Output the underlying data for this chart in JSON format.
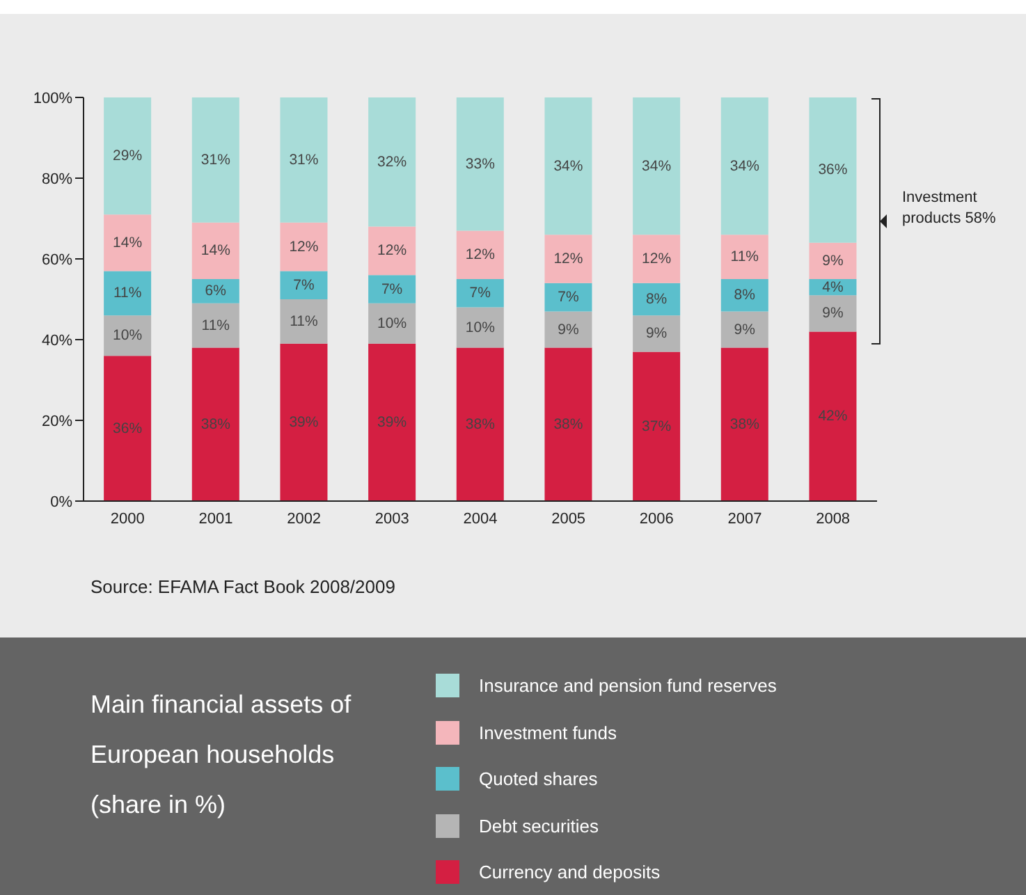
{
  "chart_data": {
    "type": "bar",
    "title": "Main financial assets of European households (share in %)",
    "categories": [
      "2000",
      "2001",
      "2002",
      "2003",
      "2004",
      "2005",
      "2006",
      "2007",
      "2008"
    ],
    "stacked": true,
    "series": [
      {
        "name": "Currency and deposits",
        "color": "#d41f42",
        "values": [
          36,
          38,
          39,
          39,
          38,
          38,
          37,
          38,
          42
        ],
        "value_labels": [
          "36%",
          "38%",
          "39%",
          "39%",
          "38%",
          "38%",
          "37%",
          "38%",
          "42%"
        ]
      },
      {
        "name": "Debt securities",
        "color": "#b5b5b5",
        "values": [
          10,
          11,
          11,
          10,
          10,
          9,
          9,
          9,
          9
        ],
        "value_labels": [
          "10%",
          "11%",
          "11%",
          "10%",
          "10%",
          "9%",
          "9%",
          "9%",
          "9%"
        ]
      },
      {
        "name": "Quoted shares",
        "color": "#5bbfcc",
        "values": [
          11,
          6,
          7,
          7,
          7,
          7,
          8,
          8,
          4
        ],
        "value_labels": [
          "11%",
          "6%",
          "7%",
          "7%",
          "7%",
          "7%",
          "8%",
          "8%",
          "4%"
        ]
      },
      {
        "name": "Investment funds",
        "color": "#f4b6bb",
        "values": [
          14,
          14,
          12,
          12,
          12,
          12,
          12,
          11,
          9
        ],
        "value_labels": [
          "14%",
          "14%",
          "12%",
          "12%",
          "12%",
          "12%",
          "12%",
          "11%",
          "9%"
        ]
      },
      {
        "name": "Insurance and pension fund reserves",
        "color": "#a8dcd8",
        "values": [
          29,
          31,
          31,
          32,
          33,
          34,
          34,
          34,
          36
        ],
        "value_labels": [
          "29%",
          "31%",
          "31%",
          "32%",
          "33%",
          "34%",
          "34%",
          "34%",
          "36%"
        ]
      }
    ],
    "ylim": [
      0,
      100
    ],
    "yticks": [
      {
        "value": 0,
        "label": "0%"
      },
      {
        "value": 20,
        "label": "20%"
      },
      {
        "value": 40,
        "label": "40%"
      },
      {
        "value": 60,
        "label": "60%"
      },
      {
        "value": 80,
        "label": "80%"
      },
      {
        "value": 100,
        "label": "100%"
      }
    ],
    "grid": false,
    "legend": "bottom",
    "annotations": [
      "Investment products 58%",
      "Source:  EFAMA Fact Book 2008/2009"
    ]
  }
}
